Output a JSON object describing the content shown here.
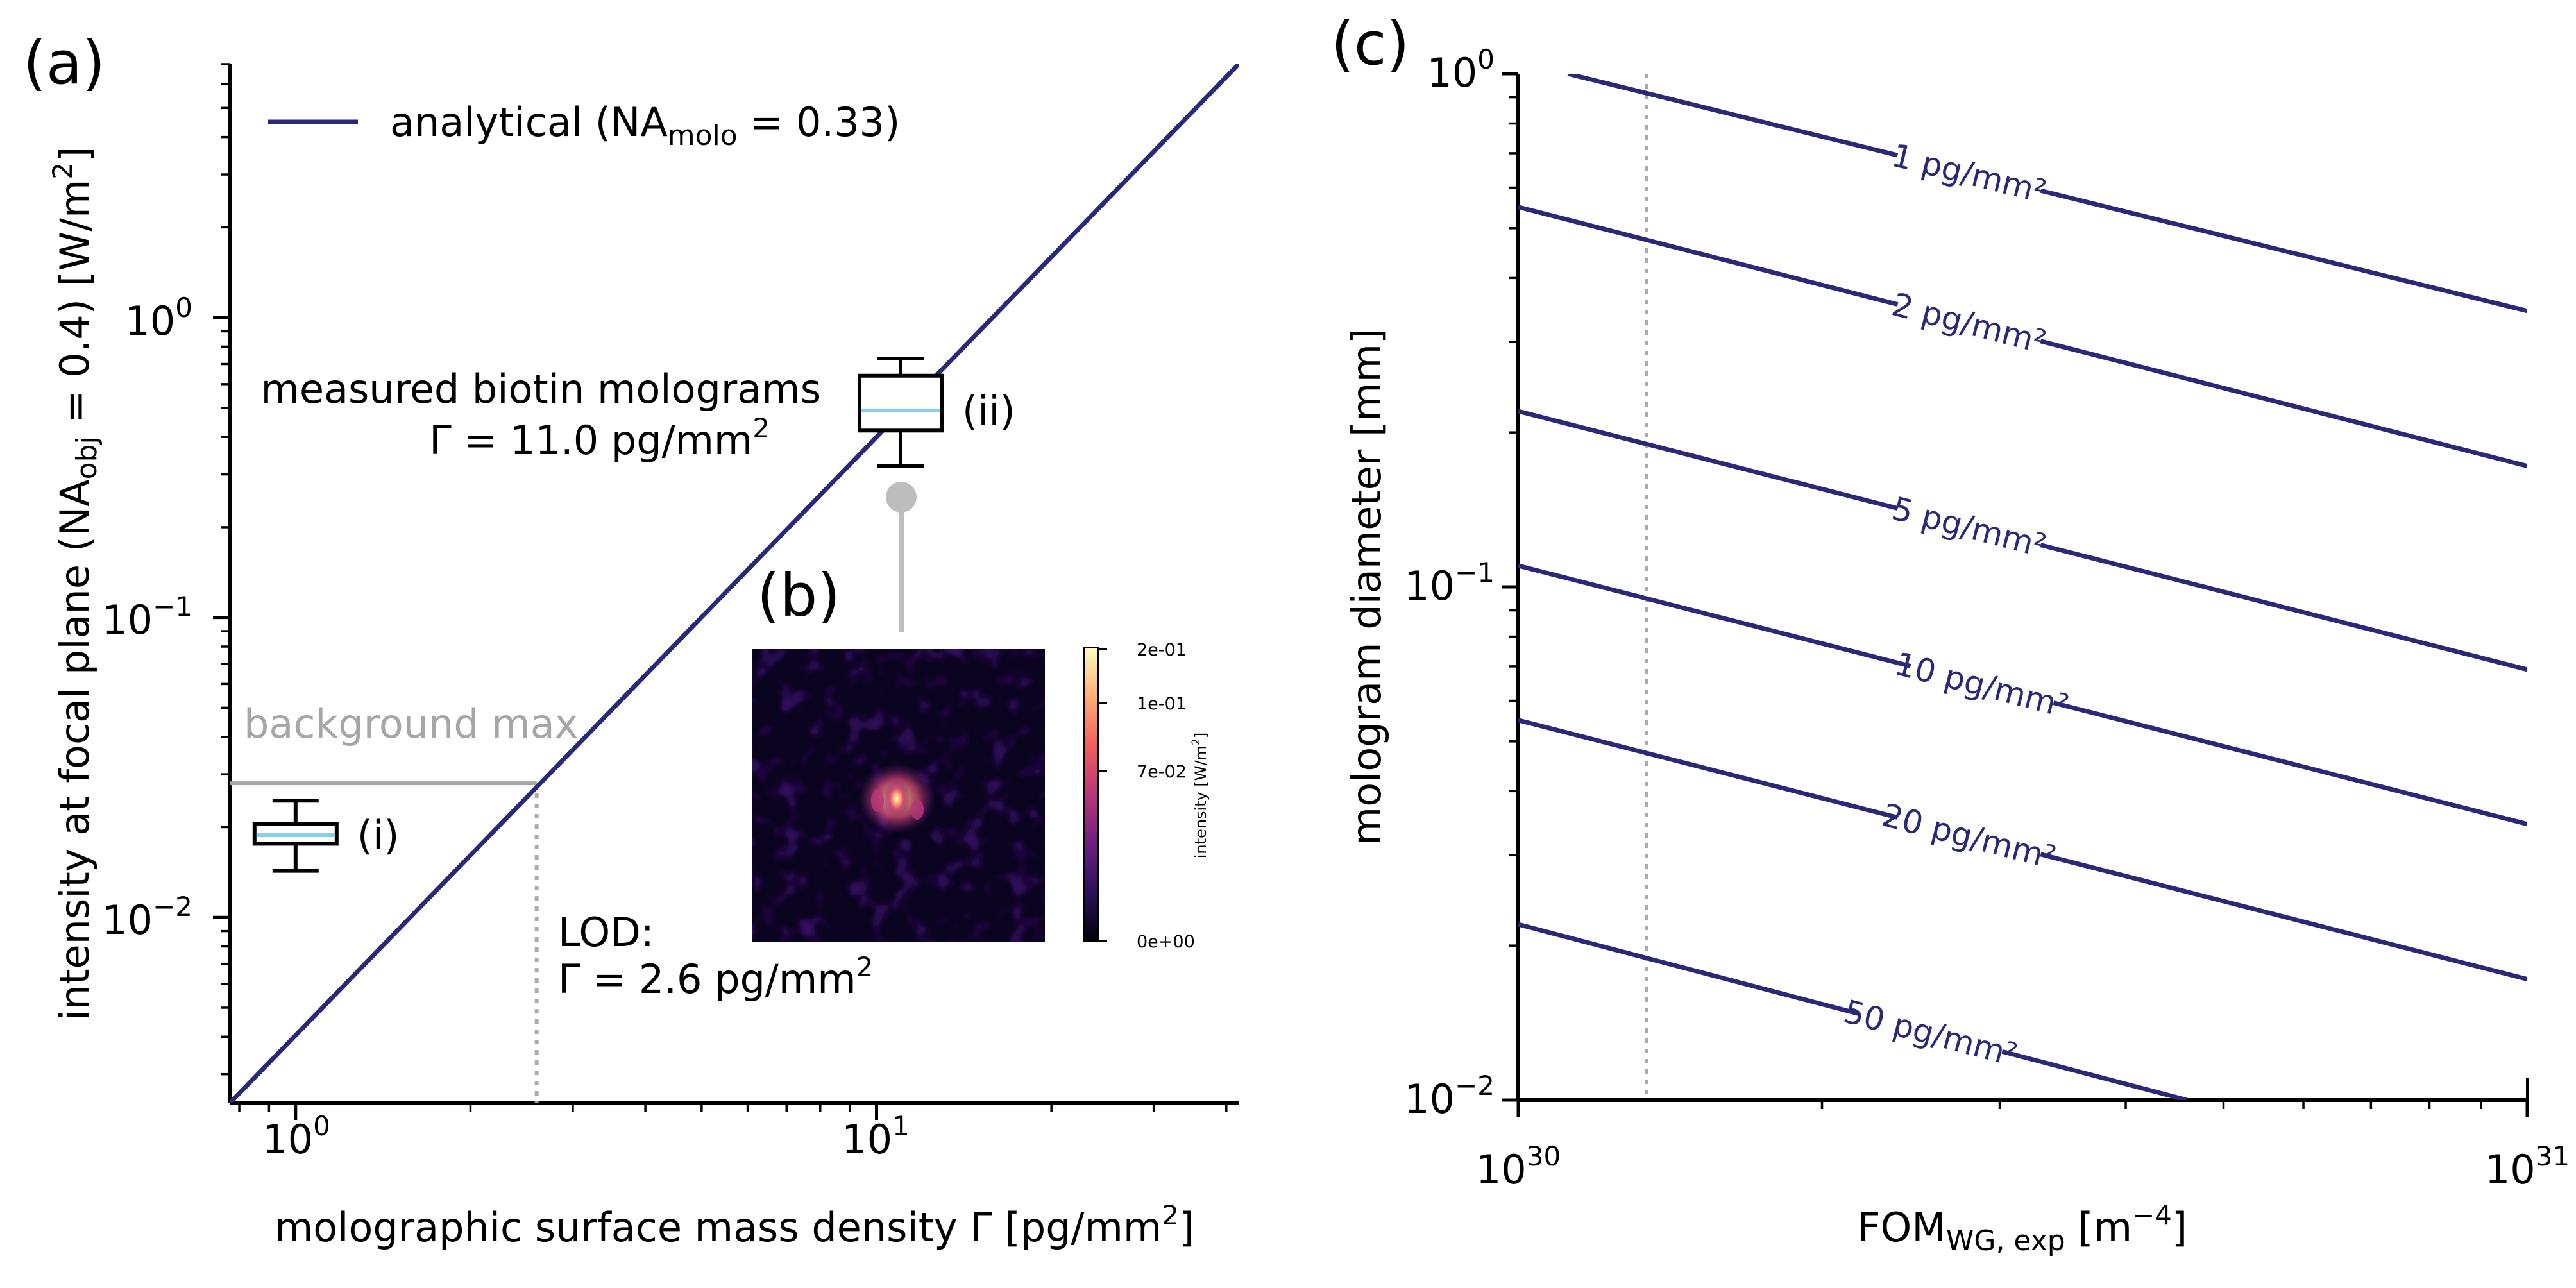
{
  "panel_labels": {
    "a": "(a)",
    "b": "(b)",
    "c": "(c)"
  },
  "colors": {
    "line": "#2c2878",
    "box_median": "#87ceeb",
    "gray": "#a6a6a6",
    "dotted": "#aaaaaa",
    "cmap": [
      "#000004",
      "#2c115f",
      "#721f81",
      "#b73779",
      "#f1605d",
      "#feb078",
      "#fcfdbf"
    ]
  },
  "chart_data": [
    {
      "type": "line",
      "panel": "(a)",
      "xlabel": "molographic surface mass density Γ [pg/mm²]",
      "ylabel": "intensity at focal plane (NA_obj = 0.4) [W/m²]",
      "xscale": "log",
      "yscale": "log",
      "xlim": [
        0.77,
        42
      ],
      "ylim": [
        0.0024,
        7
      ],
      "xticks": [
        {
          "value": 1,
          "label": "10^0"
        },
        {
          "value": 10,
          "label": "10^1"
        }
      ],
      "yticks": [
        {
          "value": 0.01,
          "label": "10^-2"
        },
        {
          "value": 0.1,
          "label": "10^-1"
        },
        {
          "value": 1,
          "label": "10^0"
        }
      ],
      "legend": {
        "label": "analytical (NA_molo = 0.33)",
        "position": "top-left"
      },
      "series": [
        {
          "name": "analytical (NA_molo = 0.33)",
          "x": [
            0.77,
            42
          ],
          "y": [
            0.0024,
            7
          ]
        }
      ],
      "boxes": [
        {
          "label": "(i)",
          "x": 1.0,
          "whisker_low": 0.0143,
          "q1": 0.0176,
          "median": 0.0188,
          "q3": 0.0205,
          "whisker_high": 0.0245
        },
        {
          "label": "(ii)",
          "x": 11.0,
          "whisker_low": 0.32,
          "q1": 0.42,
          "median": 0.49,
          "q3": 0.64,
          "whisker_high": 0.73
        }
      ],
      "annotations": {
        "measured_line1": "measured biotin molograms",
        "measured_line2": "Γ = 11.0  pg/mm²",
        "background": "background max",
        "background_y": 0.028,
        "lod_line1": "LOD:",
        "lod_line2": "Γ = 2.6  pg/mm²",
        "lod_x": 2.6
      }
    },
    {
      "type": "heatmap",
      "panel": "(b)",
      "colorbar_label": "intensity [W/m²]",
      "colorbar_ticks": [
        "2e-01",
        "1e-01",
        "7e-02",
        "0e+00"
      ]
    },
    {
      "type": "line",
      "panel": "(c)",
      "xlabel": "FOM_WG, exp [m⁻⁴]",
      "ylabel": "mologram diameter [mm]",
      "xscale": "log",
      "yscale": "log",
      "xlim": [
        1e+30,
        1e+31
      ],
      "ylim": [
        0.01,
        1
      ],
      "xticks": [
        {
          "value": 1e+30,
          "label": "10^30"
        },
        {
          "value": 1e+31,
          "label": "10^31"
        }
      ],
      "yticks": [
        {
          "value": 0.01,
          "label": "10^-2"
        },
        {
          "value": 0.1,
          "label": "10^-1"
        },
        {
          "value": 1,
          "label": "10^0"
        }
      ],
      "dotted_x": 1.34e+30,
      "series": [
        {
          "name": "1 pg/mm²",
          "label": "1 pg/mm²",
          "x": [
            1.12e+30,
            1e+31
          ],
          "y": [
            1.0,
            0.345
          ]
        },
        {
          "name": "2 pg/mm²",
          "label": "2 pg/mm²",
          "x": [
            1e+30,
            1e+31
          ],
          "y": [
            0.55,
            0.172
          ]
        },
        {
          "name": "5 pg/mm²",
          "label": "5 pg/mm²",
          "x": [
            1e+30,
            1e+31
          ],
          "y": [
            0.22,
            0.069
          ]
        },
        {
          "name": "10 pg/mm²",
          "label": "10 pg/mm²",
          "x": [
            1e+30,
            1e+31
          ],
          "y": [
            0.11,
            0.0345
          ]
        },
        {
          "name": "20 pg/mm²",
          "label": "20 pg/mm²",
          "x": [
            1e+30,
            1e+31
          ],
          "y": [
            0.055,
            0.0172
          ]
        },
        {
          "name": "50 pg/mm²",
          "label": "50 pg/mm²",
          "x": [
            1e+30,
            4.6e+30
          ],
          "y": [
            0.022,
            0.01
          ]
        }
      ]
    }
  ]
}
